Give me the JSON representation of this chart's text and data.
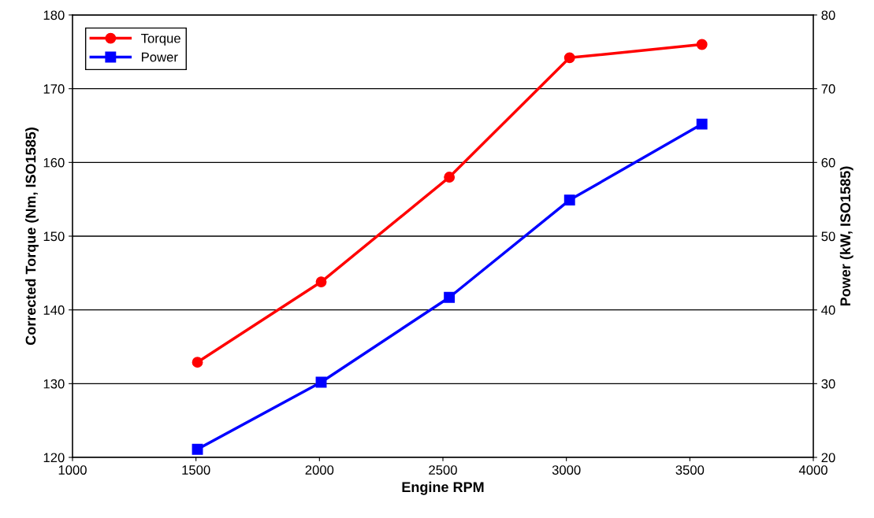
{
  "chart_data": {
    "type": "line",
    "xlabel": "Engine RPM",
    "ylabel": "Corrected Torque (Nm, ISO1585)",
    "y2label": "Power (kW, ISO1585)",
    "xlim": [
      1000,
      4000
    ],
    "xticks": [
      1000,
      1500,
      2000,
      2500,
      3000,
      3500,
      4000
    ],
    "ylim": [
      120,
      180
    ],
    "yticks": [
      120,
      130,
      140,
      150,
      160,
      170,
      180
    ],
    "y2lim": [
      20,
      80
    ],
    "y2ticks": [
      20,
      30,
      40,
      50,
      60,
      70,
      80
    ],
    "grid": "y",
    "legend": "top left",
    "line_style": "solid",
    "series": [
      {
        "name": "Torque",
        "color": "#ff0000",
        "marker": "circle",
        "x": [
          1506,
          2007,
          2526,
          3013,
          3549
        ],
        "values": [
          132.9,
          143.8,
          158.0,
          174.2,
          176.0
        ]
      },
      {
        "name": "Power",
        "color": "#0000ff",
        "marker": "square",
        "axis": "y2",
        "x": [
          1506,
          2007,
          2526,
          3013,
          3549
        ],
        "values": [
          21.1,
          30.2,
          41.7,
          54.9,
          65.2
        ]
      }
    ]
  }
}
